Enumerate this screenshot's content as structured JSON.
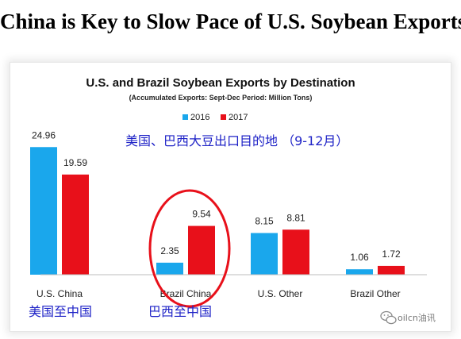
{
  "headline": "China is Key to Slow Pace of U.S. Soybean Exports",
  "chart_data": {
    "type": "bar",
    "title": "U.S. and Brazil Soybean Exports by Destination",
    "subtitle": "(Accumulated Exports:  Sept-Dec Period: Million Tons)",
    "categories": [
      "U.S. China",
      "Brazil China",
      "U.S. Other",
      "Brazil Other"
    ],
    "series": [
      {
        "name": "2016",
        "values": [
          24.96,
          2.35,
          8.15,
          1.06
        ],
        "color": "#1aa7ec"
      },
      {
        "name": "2017",
        "values": [
          19.59,
          9.54,
          8.81,
          1.72
        ],
        "color": "#e8101a"
      }
    ],
    "ylim": [
      0,
      25
    ],
    "grid": false,
    "legend_position": "top-center",
    "annotations": {
      "chinese_title": "美国、巴西大豆出口目的地 （9-12月）",
      "us_to_china": "美国至中国",
      "brazil_to_china": "巴西至中国",
      "color": "#1f23c7"
    },
    "highlight": {
      "category": "Brazil China",
      "shape": "ellipse",
      "color": "#e8101a"
    }
  },
  "watermark": {
    "icon": "wechat-icon",
    "text": "oilcn油讯"
  }
}
